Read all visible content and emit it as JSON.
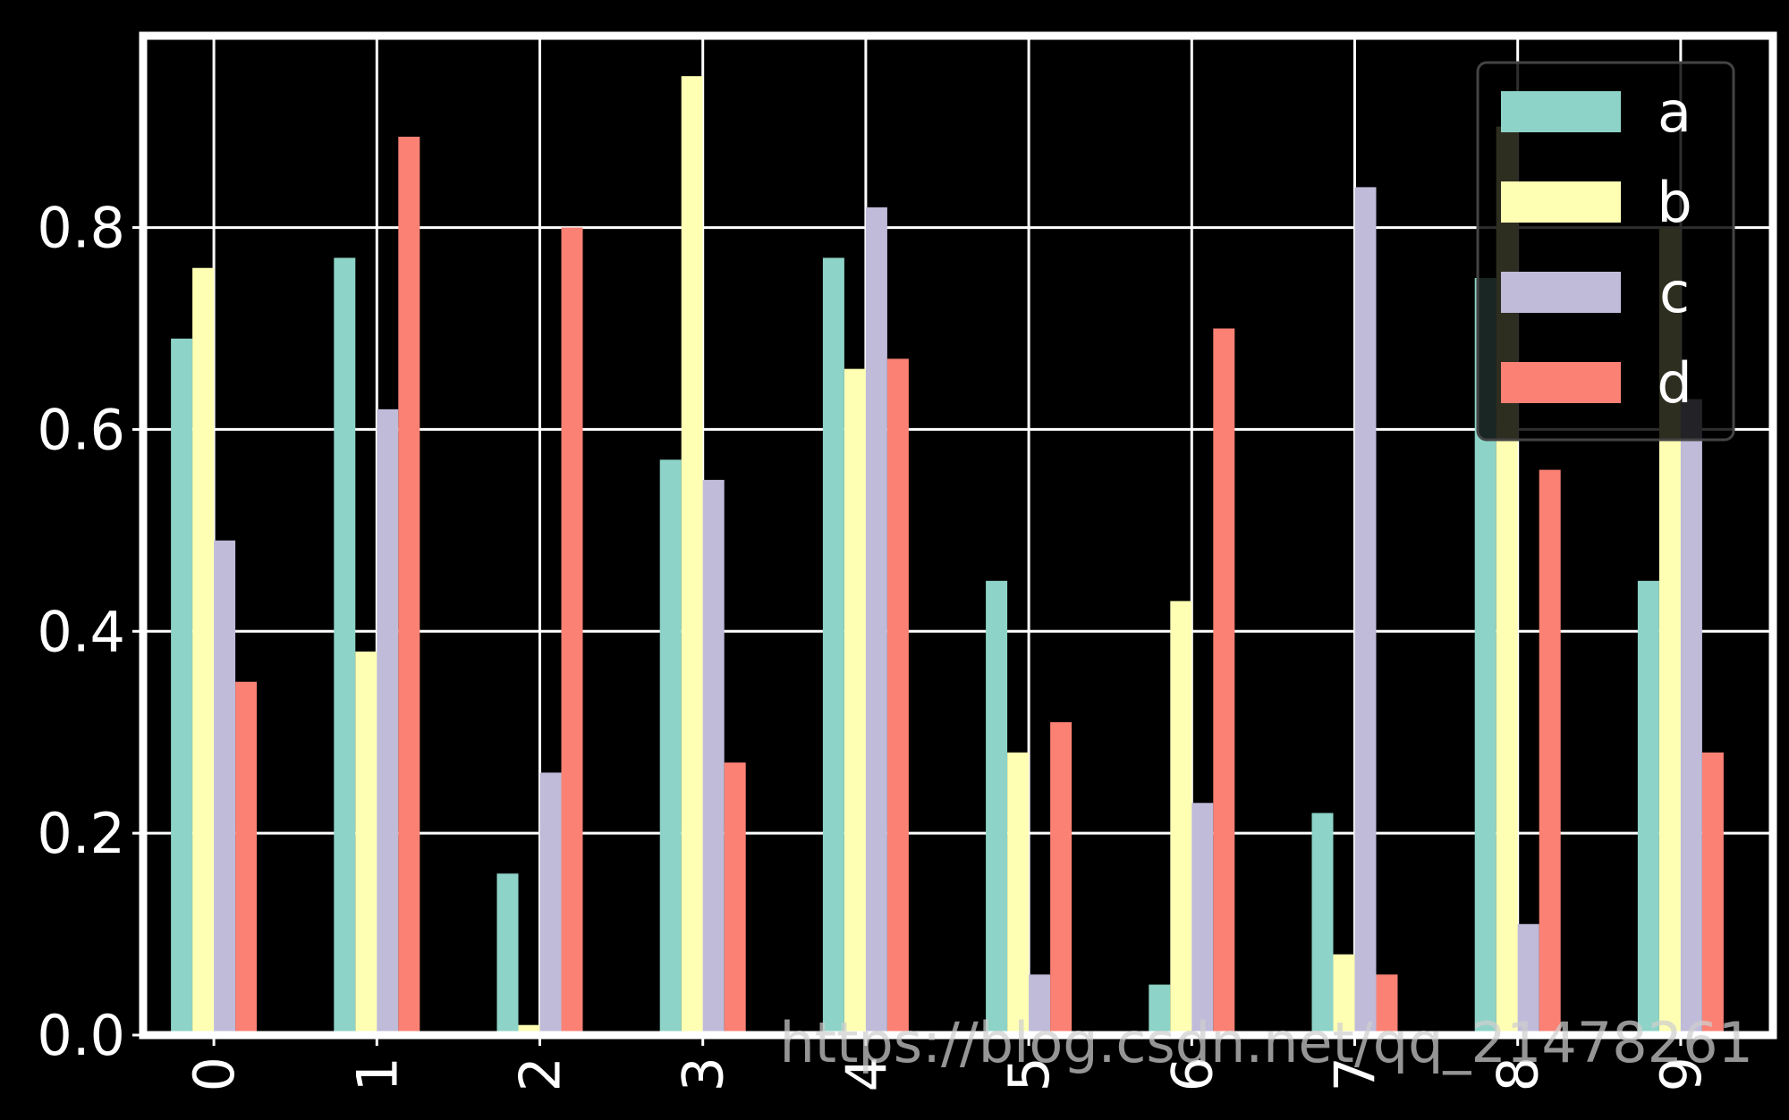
{
  "chart_data": {
    "type": "bar",
    "categories": [
      "0",
      "1",
      "2",
      "3",
      "4",
      "5",
      "6",
      "7",
      "8",
      "9"
    ],
    "series": [
      {
        "name": "a",
        "color": "#8dd3c7",
        "values": [
          0.69,
          0.77,
          0.16,
          0.57,
          0.77,
          0.45,
          0.05,
          0.22,
          0.75,
          0.45
        ]
      },
      {
        "name": "b",
        "color": "#feffb3",
        "values": [
          0.76,
          0.38,
          0.01,
          0.95,
          0.66,
          0.28,
          0.43,
          0.08,
          0.9,
          0.8
        ]
      },
      {
        "name": "c",
        "color": "#bfbbd9",
        "values": [
          0.49,
          0.62,
          0.26,
          0.55,
          0.82,
          0.06,
          0.23,
          0.84,
          0.11,
          0.63
        ]
      },
      {
        "name": "d",
        "color": "#fa8174",
        "values": [
          0.35,
          0.89,
          0.8,
          0.27,
          0.67,
          0.31,
          0.7,
          0.06,
          0.56,
          0.28
        ]
      }
    ],
    "yticks": [
      "0.0",
      "0.2",
      "0.4",
      "0.6",
      "0.8"
    ],
    "ylim": [
      0,
      0.99
    ],
    "grid": true,
    "legend_position": "top-right",
    "title": "",
    "xlabel": "",
    "ylabel": ""
  },
  "watermark": "https://blog.csdn.net/qq_21478261"
}
